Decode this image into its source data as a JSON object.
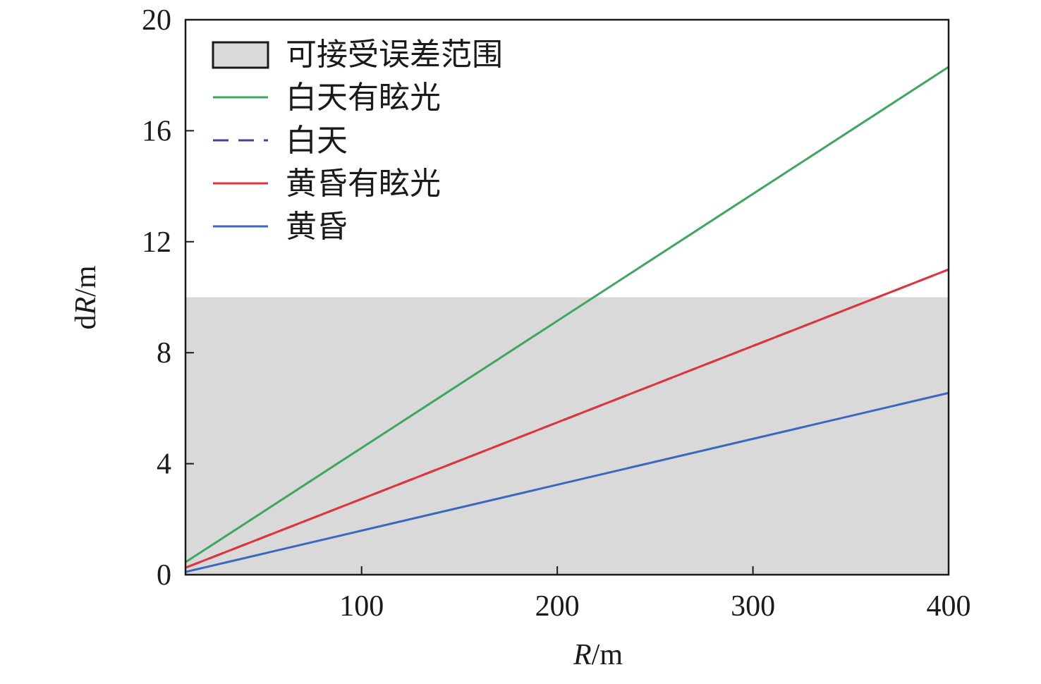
{
  "chart_data": {
    "type": "line",
    "xlabel": [
      "R",
      "/m"
    ],
    "ylabel": [
      "d",
      "R",
      "/m"
    ],
    "x": [
      10,
      400
    ],
    "band": {
      "name": "可接受误差范围",
      "range": [
        0,
        10
      ],
      "color": "#d9d9d9"
    },
    "series": [
      {
        "name": "白天有眩光",
        "color": "#3ea65f",
        "dashed": false,
        "values": [
          0.45,
          18.3
        ]
      },
      {
        "name": "白天",
        "color": "#463f9c",
        "dashed": true,
        "values": [
          0.25,
          11.0
        ]
      },
      {
        "name": "黄昏有眩光",
        "color": "#e2323c",
        "dashed": false,
        "values": [
          0.25,
          11.0
        ]
      },
      {
        "name": "黄昏",
        "color": "#3b67c4",
        "dashed": false,
        "values": [
          0.1,
          6.55
        ]
      }
    ],
    "xlim": [
      10,
      400
    ],
    "xticks": [
      100,
      200,
      300,
      400
    ],
    "ylim": [
      0,
      20
    ],
    "yticks": [
      0,
      4,
      8,
      12,
      16,
      20
    ]
  }
}
